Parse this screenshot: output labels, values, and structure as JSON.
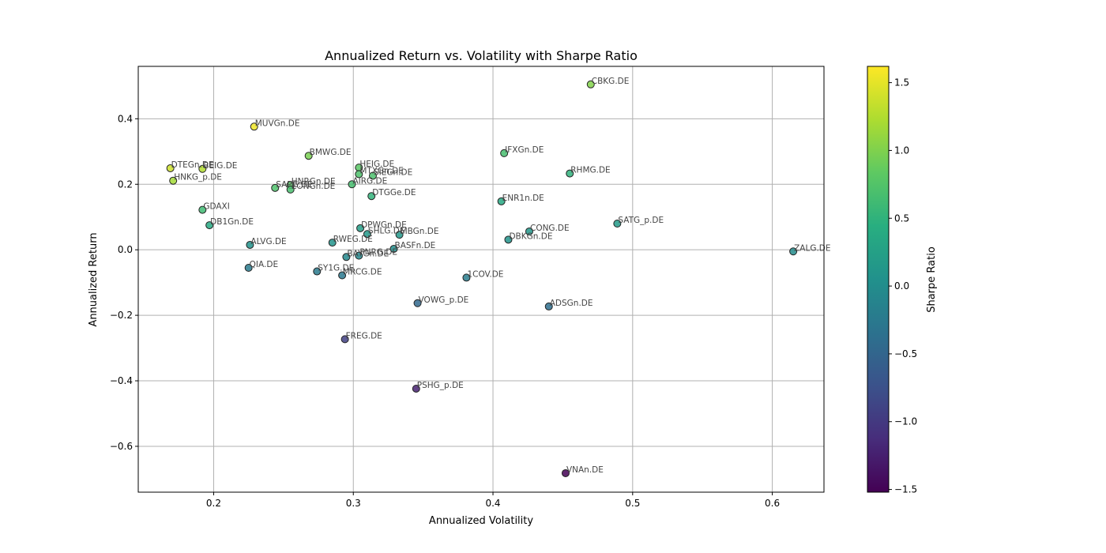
{
  "chart_data": {
    "type": "scatter",
    "title": "Annualized Return vs. Volatility with Sharpe Ratio",
    "xlabel": "Annualized Volatility",
    "ylabel": "Annualized Return",
    "xlim": [
      0.146,
      0.637
    ],
    "ylim": [
      -0.74,
      0.56
    ],
    "xticks": [
      0.2,
      0.3,
      0.4,
      0.5,
      0.6
    ],
    "xtick_labels": [
      "0.2",
      "0.3",
      "0.4",
      "0.5",
      "0.6"
    ],
    "yticks": [
      -0.6,
      -0.4,
      -0.2,
      0.0,
      0.2,
      0.4
    ],
    "ytick_labels": [
      "−0.6",
      "−0.4",
      "−0.2",
      "0.0",
      "0.2",
      "0.4"
    ],
    "grid": true,
    "colorbar": {
      "label": "Sharpe Ratio",
      "range": [
        -1.52,
        1.62
      ],
      "ticks": [
        -1.5,
        -1.0,
        -0.5,
        0.0,
        0.5,
        1.0,
        1.5
      ],
      "tick_labels": [
        "−1.5",
        "−1.0",
        "−0.5",
        "0.0",
        "0.5",
        "1.0",
        "1.5"
      ],
      "colormap": "viridis"
    },
    "points": [
      {
        "label": "CBKG.DE",
        "x": 0.47,
        "y": 0.505,
        "sharpe": 1.02
      },
      {
        "label": "MUVGn.DE",
        "x": 0.229,
        "y": 0.376,
        "sharpe": 1.55
      },
      {
        "label": "BMWG.DE",
        "x": 0.268,
        "y": 0.287,
        "sharpe": 0.97
      },
      {
        "label": "IFXGn.DE",
        "x": 0.408,
        "y": 0.295,
        "sharpe": 0.66
      },
      {
        "label": "DTEGn.DE",
        "x": 0.169,
        "y": 0.249,
        "sharpe": 1.38
      },
      {
        "label": "BEIG.DE",
        "x": 0.192,
        "y": 0.247,
        "sharpe": 1.25
      },
      {
        "label": "HNKG_p.DE",
        "x": 0.171,
        "y": 0.211,
        "sharpe": 1.18
      },
      {
        "label": "HEIG.DE",
        "x": 0.304,
        "y": 0.251,
        "sharpe": 0.8
      },
      {
        "label": "MTXGn.DE",
        "x": 0.304,
        "y": 0.231,
        "sharpe": 0.72
      },
      {
        "label": "SIEGn.DE",
        "x": 0.314,
        "y": 0.226,
        "sharpe": 0.7
      },
      {
        "label": "RHMG.DE",
        "x": 0.455,
        "y": 0.233,
        "sharpe": 0.5
      },
      {
        "label": "HNRGn.DE",
        "x": 0.255,
        "y": 0.198,
        "sharpe": 0.78
      },
      {
        "label": "SAPG.DE",
        "x": 0.244,
        "y": 0.189,
        "sharpe": 0.72
      },
      {
        "label": "EONGn.DE",
        "x": 0.255,
        "y": 0.184,
        "sharpe": 0.68
      },
      {
        "label": "AIRG.DE",
        "x": 0.299,
        "y": 0.2,
        "sharpe": 0.66
      },
      {
        "label": "DTGGe.DE",
        "x": 0.313,
        "y": 0.164,
        "sharpe": 0.52
      },
      {
        "label": "ENR1n.DE",
        "x": 0.406,
        "y": 0.148,
        "sharpe": 0.36
      },
      {
        "label": "GDAXI",
        "x": 0.192,
        "y": 0.122,
        "sharpe": 0.62
      },
      {
        "label": "DB1Gn.DE",
        "x": 0.197,
        "y": 0.075,
        "sharpe": 0.38
      },
      {
        "label": "SATG_p.DE",
        "x": 0.489,
        "y": 0.08,
        "sharpe": 0.17
      },
      {
        "label": "DPWGn.DE",
        "x": 0.305,
        "y": 0.066,
        "sharpe": 0.22
      },
      {
        "label": "CONG.DE",
        "x": 0.426,
        "y": 0.056,
        "sharpe": 0.13
      },
      {
        "label": "SHLG.DE",
        "x": 0.31,
        "y": 0.048,
        "sharpe": 0.16
      },
      {
        "label": "MBGn.DE",
        "x": 0.333,
        "y": 0.046,
        "sharpe": 0.14
      },
      {
        "label": "DBKGn.DE",
        "x": 0.411,
        "y": 0.031,
        "sharpe": 0.08
      },
      {
        "label": "ALVG.DE",
        "x": 0.226,
        "y": 0.015,
        "sharpe": 0.07
      },
      {
        "label": "RWEG.DE",
        "x": 0.285,
        "y": 0.022,
        "sharpe": 0.08
      },
      {
        "label": "BASFn.DE",
        "x": 0.329,
        "y": 0.003,
        "sharpe": 0.01
      },
      {
        "label": "ZALG.DE",
        "x": 0.615,
        "y": -0.005,
        "sharpe": -0.01
      },
      {
        "label": "BAYGn.DE",
        "x": 0.295,
        "y": -0.022,
        "sharpe": -0.07
      },
      {
        "label": "PNRG.DE",
        "x": 0.304,
        "y": -0.018,
        "sharpe": -0.06
      },
      {
        "label": "QIA.DE",
        "x": 0.225,
        "y": -0.055,
        "sharpe": -0.24
      },
      {
        "label": "SY1G.DE",
        "x": 0.274,
        "y": -0.066,
        "sharpe": -0.24
      },
      {
        "label": "MRCG.DE",
        "x": 0.292,
        "y": -0.078,
        "sharpe": -0.27
      },
      {
        "label": "1COV.DE",
        "x": 0.381,
        "y": -0.085,
        "sharpe": -0.22
      },
      {
        "label": "VOWG_p.DE",
        "x": 0.346,
        "y": -0.163,
        "sharpe": -0.47
      },
      {
        "label": "ADSGn.DE",
        "x": 0.44,
        "y": -0.173,
        "sharpe": -0.39
      },
      {
        "label": "FREG.DE",
        "x": 0.294,
        "y": -0.273,
        "sharpe": -0.93
      },
      {
        "label": "PSHG_p.DE",
        "x": 0.345,
        "y": -0.424,
        "sharpe": -1.23
      },
      {
        "label": "VNAn.DE",
        "x": 0.452,
        "y": -0.682,
        "sharpe": -1.51
      }
    ]
  }
}
